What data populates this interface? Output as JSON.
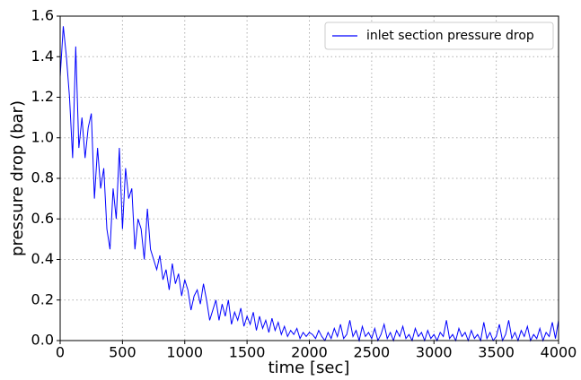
{
  "chart_data": {
    "type": "line",
    "xlabel": "time [sec]",
    "ylabel": "pressure drop (bar)",
    "x": [
      0,
      25,
      50,
      75,
      100,
      125,
      150,
      175,
      200,
      225,
      250,
      275,
      300,
      325,
      350,
      375,
      400,
      425,
      450,
      475,
      500,
      525,
      550,
      575,
      600,
      625,
      650,
      675,
      700,
      725,
      750,
      775,
      800,
      825,
      850,
      875,
      900,
      925,
      950,
      975,
      1000,
      1025,
      1050,
      1075,
      1100,
      1125,
      1150,
      1175,
      1200,
      1225,
      1250,
      1275,
      1300,
      1325,
      1350,
      1375,
      1400,
      1425,
      1450,
      1475,
      1500,
      1525,
      1550,
      1575,
      1600,
      1625,
      1650,
      1675,
      1700,
      1725,
      1750,
      1775,
      1800,
      1825,
      1850,
      1875,
      1900,
      1925,
      1950,
      1975,
      2000,
      2025,
      2050,
      2075,
      2100,
      2125,
      2150,
      2175,
      2200,
      2225,
      2250,
      2275,
      2300,
      2325,
      2350,
      2375,
      2400,
      2425,
      2450,
      2475,
      2500,
      2525,
      2550,
      2575,
      2600,
      2625,
      2650,
      2675,
      2700,
      2725,
      2750,
      2775,
      2800,
      2825,
      2850,
      2875,
      2900,
      2925,
      2950,
      2975,
      3000,
      3025,
      3050,
      3075,
      3100,
      3125,
      3150,
      3175,
      3200,
      3225,
      3250,
      3275,
      3300,
      3325,
      3350,
      3375,
      3400,
      3425,
      3450,
      3475,
      3500,
      3525,
      3550,
      3575,
      3600,
      3625,
      3650,
      3675,
      3700,
      3725,
      3750,
      3775,
      3800,
      3825,
      3850,
      3875,
      3900,
      3925,
      3950,
      3975,
      4000
    ],
    "series": [
      {
        "name": "inlet section pressure drop",
        "color": "#0000ff",
        "values": [
          1.3,
          1.55,
          1.4,
          1.2,
          0.9,
          1.45,
          0.95,
          1.1,
          0.9,
          1.05,
          1.12,
          0.7,
          0.95,
          0.75,
          0.85,
          0.55,
          0.45,
          0.75,
          0.6,
          0.95,
          0.55,
          0.85,
          0.7,
          0.75,
          0.45,
          0.6,
          0.55,
          0.4,
          0.65,
          0.45,
          0.4,
          0.35,
          0.42,
          0.3,
          0.35,
          0.25,
          0.38,
          0.28,
          0.33,
          0.22,
          0.3,
          0.25,
          0.15,
          0.22,
          0.25,
          0.18,
          0.28,
          0.2,
          0.1,
          0.15,
          0.2,
          0.1,
          0.18,
          0.12,
          0.2,
          0.08,
          0.14,
          0.1,
          0.16,
          0.07,
          0.12,
          0.08,
          0.14,
          0.05,
          0.12,
          0.06,
          0.1,
          0.04,
          0.11,
          0.05,
          0.09,
          0.03,
          0.07,
          0.02,
          0.05,
          0.03,
          0.06,
          0.01,
          0.04,
          0.02,
          0.04,
          0.03,
          0.01,
          0.05,
          0.02,
          0.0,
          0.04,
          0.01,
          0.06,
          0.02,
          0.08,
          0.01,
          0.03,
          0.1,
          0.02,
          0.05,
          0.0,
          0.07,
          0.02,
          0.04,
          0.01,
          0.06,
          0.0,
          0.03,
          0.08,
          0.01,
          0.04,
          0.0,
          0.05,
          0.02,
          0.07,
          0.01,
          0.03,
          0.0,
          0.06,
          0.02,
          0.04,
          0.0,
          0.05,
          0.01,
          0.03,
          0.0,
          0.04,
          0.02,
          0.1,
          0.01,
          0.03,
          0.0,
          0.06,
          0.02,
          0.04,
          0.0,
          0.05,
          0.01,
          0.03,
          0.0,
          0.09,
          0.01,
          0.04,
          0.0,
          0.02,
          0.08,
          0.0,
          0.03,
          0.1,
          0.01,
          0.04,
          0.0,
          0.05,
          0.02,
          0.07,
          0.0,
          0.03,
          0.01,
          0.06,
          0.0,
          0.04,
          0.02,
          0.09,
          0.01,
          0.1
        ]
      }
    ],
    "xlim": [
      0,
      4000
    ],
    "xticks": [
      0,
      500,
      1000,
      1500,
      2000,
      2500,
      3000,
      3500,
      4000
    ],
    "ylim": [
      0,
      1.6
    ],
    "yticks": [
      {
        "value": 0,
        "label": "0.0"
      },
      0.2,
      0.4,
      0.6,
      0.8,
      {
        "value": 1,
        "label": "1.0"
      },
      1.2,
      1.4,
      1.6
    ],
    "grid": true,
    "legend": "upper right"
  }
}
